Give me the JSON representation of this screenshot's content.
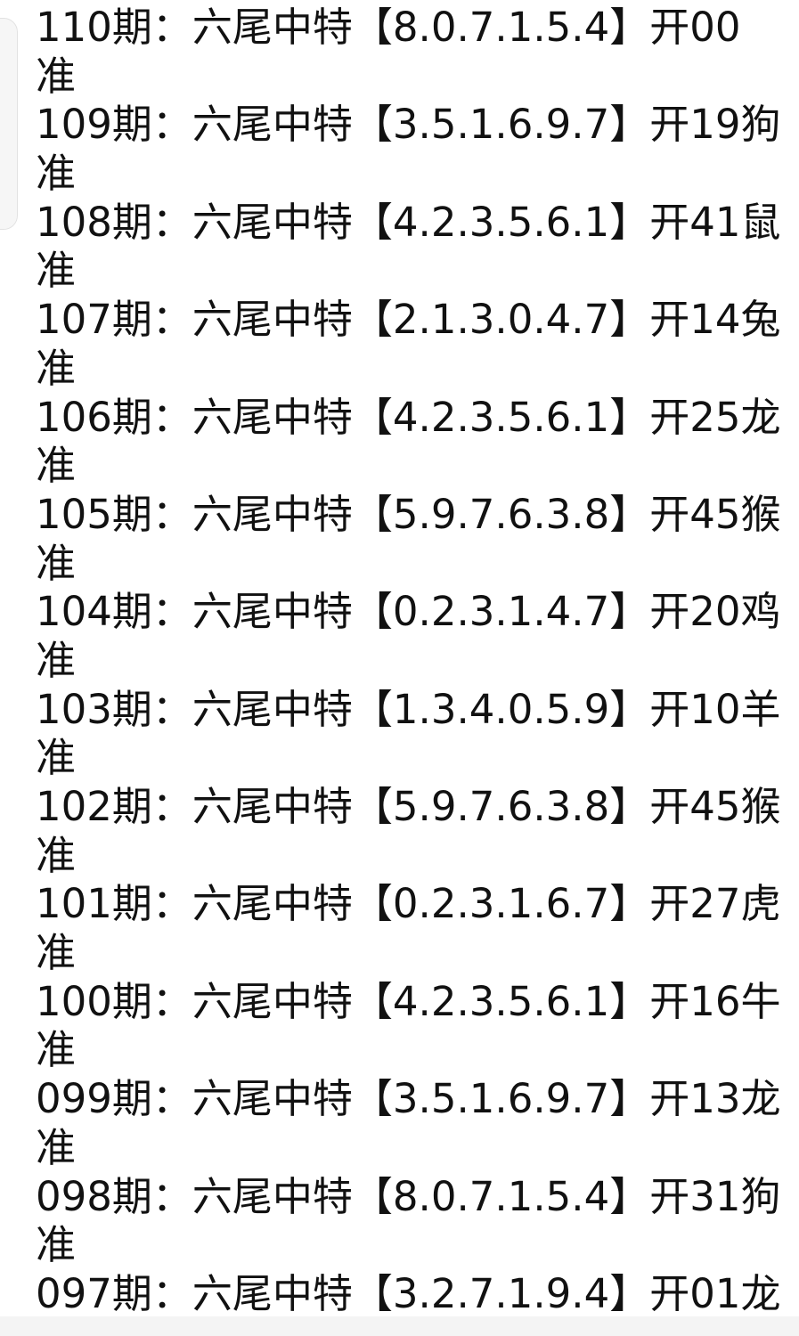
{
  "entries": [
    {
      "period": "110期：",
      "label": "六尾中特",
      "numbers": "【8.0.7.1.5.4】",
      "result": "开00",
      "status": "准"
    },
    {
      "period": "109期：",
      "label": "六尾中特",
      "numbers": "【3.5.1.6.9.7】",
      "result": "开19狗",
      "status": "准"
    },
    {
      "period": "108期：",
      "label": "六尾中特",
      "numbers": "【4.2.3.5.6.1】",
      "result": "开41鼠",
      "status": "准"
    },
    {
      "period": "107期：",
      "label": "六尾中特",
      "numbers": "【2.1.3.0.4.7】",
      "result": "开14兔",
      "status": "准"
    },
    {
      "period": "106期：",
      "label": "六尾中特",
      "numbers": "【4.2.3.5.6.1】",
      "result": "开25龙",
      "status": "准"
    },
    {
      "period": "105期：",
      "label": "六尾中特",
      "numbers": "【5.9.7.6.3.8】",
      "result": "开45猴",
      "status": "准"
    },
    {
      "period": "104期：",
      "label": "六尾中特",
      "numbers": "【0.2.3.1.4.7】",
      "result": "开20鸡",
      "status": "准"
    },
    {
      "period": "103期：",
      "label": "六尾中特",
      "numbers": "【1.3.4.0.5.9】",
      "result": "开10羊",
      "status": "准"
    },
    {
      "period": "102期：",
      "label": "六尾中特",
      "numbers": "【5.9.7.6.3.8】",
      "result": "开45猴",
      "status": "准"
    },
    {
      "period": "101期：",
      "label": "六尾中特",
      "numbers": "【0.2.3.1.6.7】",
      "result": "开27虎",
      "status": "准"
    },
    {
      "period": "100期：",
      "label": "六尾中特",
      "numbers": "【4.2.3.5.6.1】",
      "result": "开16牛",
      "status": "准"
    },
    {
      "period": "099期：",
      "label": "六尾中特",
      "numbers": "【3.5.1.6.9.7】",
      "result": "开13龙",
      "status": "准"
    },
    {
      "period": "098期：",
      "label": "六尾中特",
      "numbers": "【8.0.7.1.5.4】",
      "result": "开31狗",
      "status": "准"
    },
    {
      "period": "097期：",
      "label": "六尾中特",
      "numbers": "【3.2.7.1.9.4】",
      "result": "开01龙",
      "status": ""
    }
  ]
}
